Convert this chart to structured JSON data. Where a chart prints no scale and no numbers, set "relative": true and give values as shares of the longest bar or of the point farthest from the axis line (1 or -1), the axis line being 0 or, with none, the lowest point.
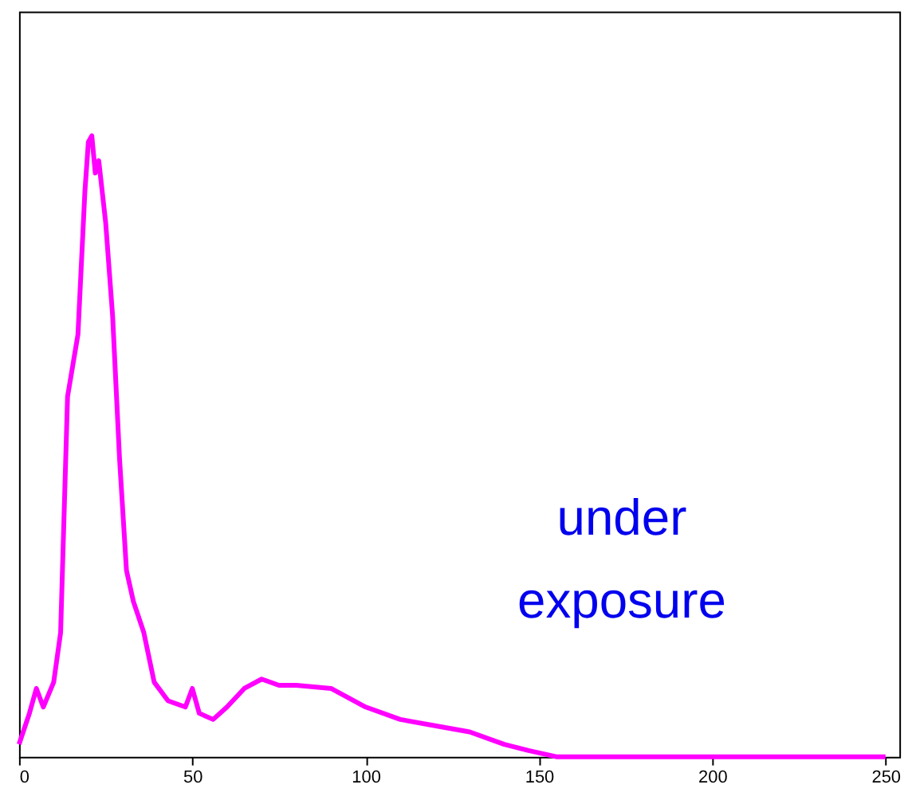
{
  "chart_data": {
    "type": "line",
    "relative": true,
    "x": [
      0,
      3,
      5,
      7,
      10,
      12,
      14,
      17,
      19,
      20,
      21,
      22,
      23,
      25,
      27,
      29,
      31,
      33,
      36,
      39,
      43,
      48,
      50,
      52,
      56,
      60,
      65,
      70,
      75,
      80,
      90,
      100,
      110,
      120,
      130,
      140,
      147,
      155,
      200,
      250
    ],
    "series": [
      {
        "color": "#ff00ff",
        "values": [
          0.02,
          0.07,
          0.11,
          0.08,
          0.12,
          0.2,
          0.58,
          0.68,
          0.91,
          0.99,
          1.0,
          0.94,
          0.96,
          0.86,
          0.71,
          0.48,
          0.3,
          0.25,
          0.2,
          0.12,
          0.09,
          0.08,
          0.11,
          0.07,
          0.06,
          0.08,
          0.11,
          0.125,
          0.115,
          0.115,
          0.11,
          0.08,
          0.06,
          0.05,
          0.04,
          0.02,
          0.01,
          0,
          0,
          0
        ]
      }
    ],
    "xlim": [
      0,
      254
    ],
    "xticks": [
      0,
      50,
      100,
      150,
      200,
      250
    ],
    "annotations": [
      "under exposure"
    ],
    "grid": false,
    "marker": "none",
    "line_style": "solid"
  }
}
